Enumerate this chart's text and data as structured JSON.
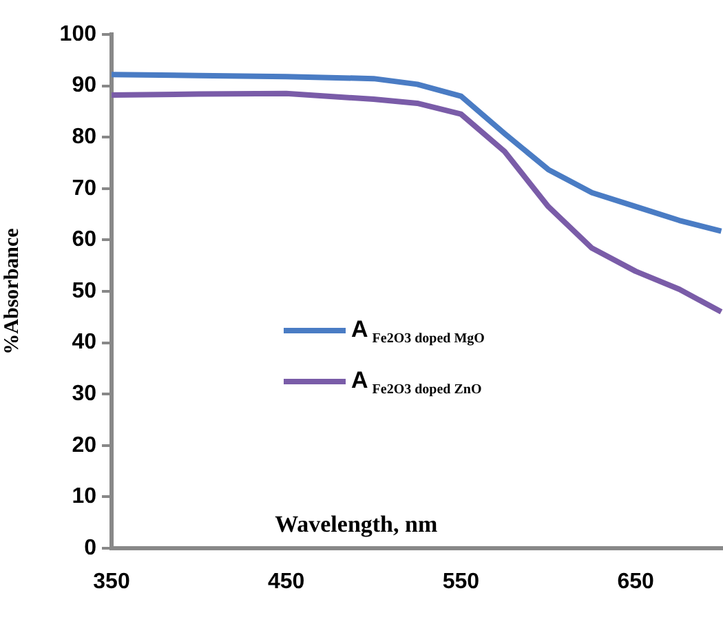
{
  "chart_data": {
    "type": "line",
    "xlabel": "Wavelength, nm",
    "ylabel": "%Absorbance",
    "xlim": [
      350,
      700
    ],
    "xticks": [
      350,
      450,
      550,
      650
    ],
    "ylim": [
      0,
      100
    ],
    "yticks": [
      0,
      10,
      20,
      30,
      40,
      50,
      60,
      70,
      80,
      90,
      100
    ],
    "grid": false,
    "legend": "left",
    "marker": "none",
    "line_style": "solid",
    "series": [
      {
        "name": "A$_{Fe2O3 doped MgO}$",
        "color": "#4a7cc4",
        "x": [
          350,
          400,
          450,
          500,
          525,
          550,
          575,
          600,
          625,
          650,
          675,
          699
        ],
        "values": [
          92.2,
          92,
          91.8,
          91.4,
          90.3,
          88,
          80.7,
          73.7,
          69.2,
          66.5,
          63.8,
          61.7
        ]
      },
      {
        "name": "A$_{Fe2O3 doped ZnO}$",
        "color": "#7a5ca8",
        "x": [
          350,
          400,
          450,
          500,
          525,
          550,
          575,
          600,
          625,
          650,
          675,
          699
        ],
        "values": [
          88.2,
          88.4,
          88.5,
          87.4,
          86.6,
          84.5,
          77.2,
          66.5,
          58.4,
          53.9,
          50.4,
          46
        ]
      }
    ]
  }
}
